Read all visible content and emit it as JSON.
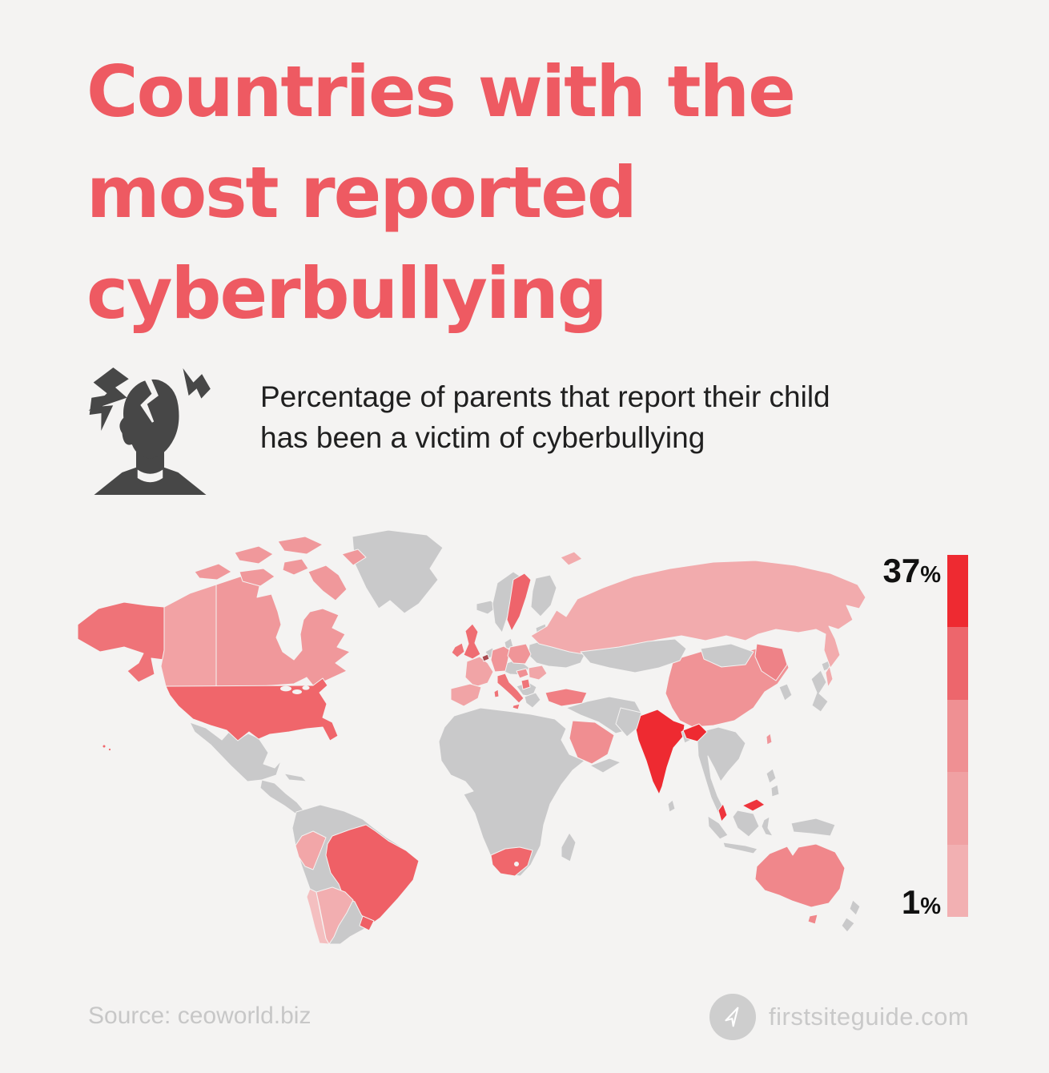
{
  "colors": {
    "background": "#f4f3f2",
    "title": "#ee5a62",
    "text": "#202020",
    "muted": "#c7c7c7",
    "badge": "#cecece",
    "icon": "#474747",
    "land": "#c9c9ca"
  },
  "title": {
    "line1": "Countries with the",
    "line2": "most reported",
    "line3": "cyberbullying"
  },
  "subtitle": {
    "line1": "Percentage of parents that report their child",
    "line2": "has been a victim of cyberbullying"
  },
  "legend": {
    "max_value": "37",
    "min_value": "1",
    "unit": "%",
    "colors": [
      "#ee2a31",
      "#ed666c",
      "#ef9093",
      "#f0a1a3",
      "#f2b0b2"
    ]
  },
  "map": {
    "ocean_color": "#f4f3f2",
    "land_color": "#c9c9ca",
    "regions": [
      {
        "id": "india",
        "label": "India",
        "color": "#ee2a31"
      },
      {
        "id": "india-ne",
        "label": "India (northeast)",
        "color": "#ee2a31"
      },
      {
        "id": "malaysia-peninsula",
        "label": "Malaysia (peninsula)",
        "color": "#ee343c"
      },
      {
        "id": "malaysia-borneo",
        "label": "Malaysia (Borneo)",
        "color": "#ee343c"
      },
      {
        "id": "belgium",
        "label": "Belgium",
        "color": "#a84b51"
      },
      {
        "id": "usa",
        "label": "United States",
        "color": "#f0666b"
      },
      {
        "id": "alaska",
        "label": "United States (Alaska)",
        "color": "#ef7378"
      },
      {
        "id": "hawaii",
        "label": "United States (Hawaii)",
        "color": "#f0666b"
      },
      {
        "id": "brazil",
        "label": "Brazil",
        "color": "#ef6066"
      },
      {
        "id": "uruguay",
        "label": "Uruguay",
        "color": "#ef6066"
      },
      {
        "id": "south-africa",
        "label": "South Africa",
        "color": "#f0676c"
      },
      {
        "id": "sweden",
        "label": "Sweden",
        "color": "#ee646b"
      },
      {
        "id": "uk",
        "label": "United Kingdom",
        "color": "#ef6d72"
      },
      {
        "id": "ireland",
        "label": "Ireland",
        "color": "#ef7478"
      },
      {
        "id": "italy",
        "label": "Italy",
        "color": "#ef7377"
      },
      {
        "id": "serbia",
        "label": "Serbia",
        "color": "#ef7579"
      },
      {
        "id": "turkey",
        "label": "Turkey",
        "color": "#f07f83"
      },
      {
        "id": "australia",
        "label": "Australia",
        "color": "#f0878b"
      },
      {
        "id": "tasmania",
        "label": "Australia (Tasmania)",
        "color": "#f0878b"
      },
      {
        "id": "saudi",
        "label": "Saudi Arabia",
        "color": "#f08e91"
      },
      {
        "id": "china",
        "label": "China",
        "color": "#f09396"
      },
      {
        "id": "china-northeast",
        "label": "China (northeast)",
        "color": "#ee8287"
      },
      {
        "id": "taiwan",
        "label": "Taiwan",
        "color": "#f0959a"
      },
      {
        "id": "germany",
        "label": "Germany",
        "color": "#f09598"
      },
      {
        "id": "poland",
        "label": "Poland",
        "color": "#f09598"
      },
      {
        "id": "hungary",
        "label": "Hungary",
        "color": "#f09094"
      },
      {
        "id": "canada",
        "label": "Canada",
        "color": "#f0989b"
      },
      {
        "id": "canada-west",
        "label": "Canada (west)",
        "color": "#f2a2a4"
      },
      {
        "id": "arctic-canada",
        "label": "Canada (arctic islands)",
        "color": "#f0989b"
      },
      {
        "id": "france",
        "label": "France",
        "color": "#f1a4a6"
      },
      {
        "id": "spain",
        "label": "Spain",
        "color": "#f1a4a6"
      },
      {
        "id": "romania",
        "label": "Romania",
        "color": "#f1a6a8"
      },
      {
        "id": "peru",
        "label": "Peru",
        "color": "#f2a6a8"
      },
      {
        "id": "russia",
        "label": "Russia",
        "color": "#f2abad"
      },
      {
        "id": "sakhalin",
        "label": "Russia (Sakhalin)",
        "color": "#f2abad"
      },
      {
        "id": "svalbard",
        "label": "Svalbard",
        "color": "#f2abad"
      },
      {
        "id": "argentina",
        "label": "Argentina",
        "color": "#f2aeb0"
      },
      {
        "id": "chile",
        "label": "Chile",
        "color": "#f4bfc0"
      }
    ]
  },
  "footer": {
    "source": "Source: ceoworld.biz",
    "brand": "firstsiteguide.com"
  },
  "chart_data": {
    "type": "choropleth",
    "title": "Countries with the most reported cyberbullying",
    "subtitle": "Percentage of parents that report their child has been a victim of cyberbullying",
    "unit": "%",
    "value_range": [
      1,
      37
    ],
    "legend": {
      "max_label": "37%",
      "min_label": "1%",
      "orientation": "vertical",
      "position": "right",
      "swatches": [
        "#ee2a31",
        "#ed666c",
        "#ef9093",
        "#f0a1a3",
        "#f2b0b2"
      ]
    },
    "highlighted_regions": [
      {
        "name": "India",
        "shade": "#ee2a31"
      },
      {
        "name": "Malaysia",
        "shade": "#ee343c"
      },
      {
        "name": "Belgium",
        "shade": "#a84b51"
      },
      {
        "name": "United States",
        "shade": "#f0666b"
      },
      {
        "name": "Brazil",
        "shade": "#ef6066"
      },
      {
        "name": "Uruguay",
        "shade": "#ef6066"
      },
      {
        "name": "Sweden",
        "shade": "#ee646b"
      },
      {
        "name": "South Africa",
        "shade": "#f0676c"
      },
      {
        "name": "United Kingdom",
        "shade": "#ef6d72"
      },
      {
        "name": "Ireland",
        "shade": "#ef7478"
      },
      {
        "name": "Italy",
        "shade": "#ef7377"
      },
      {
        "name": "Serbia",
        "shade": "#ef7579"
      },
      {
        "name": "Turkey",
        "shade": "#f07f83"
      },
      {
        "name": "Australia",
        "shade": "#f0878b"
      },
      {
        "name": "Saudi Arabia",
        "shade": "#f08e91"
      },
      {
        "name": "China",
        "shade": "#f09396"
      },
      {
        "name": "Germany",
        "shade": "#f09598"
      },
      {
        "name": "Poland",
        "shade": "#f09598"
      },
      {
        "name": "Hungary",
        "shade": "#f09094"
      },
      {
        "name": "Canada",
        "shade": "#f0989b"
      },
      {
        "name": "France",
        "shade": "#f1a4a6"
      },
      {
        "name": "Spain",
        "shade": "#f1a4a6"
      },
      {
        "name": "Romania",
        "shade": "#f1a6a8"
      },
      {
        "name": "Peru",
        "shade": "#f2a6a8"
      },
      {
        "name": "Russia",
        "shade": "#f2abad"
      },
      {
        "name": "Argentina",
        "shade": "#f2aeb0"
      },
      {
        "name": "Chile",
        "shade": "#f4bfc0"
      },
      {
        "name": "Taiwan",
        "shade": "#f0959a"
      }
    ],
    "uncolored_regions_color": "#c9c9ca"
  }
}
